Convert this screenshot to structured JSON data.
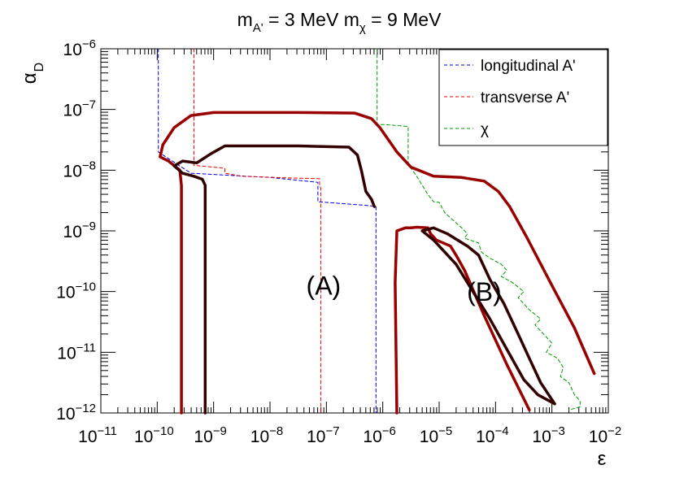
{
  "chart_data": {
    "type": "line",
    "title_parts": {
      "m1": "m",
      "m1_sub": "A'",
      "m1_val": " = 3 MeV ",
      "m2": "m",
      "m2_sub": "χ",
      "m2_val": " = 9 MeV"
    },
    "xlabel": "ε",
    "ylabel": "α",
    "ylabel_sub": "D",
    "x_scale": "log",
    "y_scale": "log",
    "xlim_exp": [
      -11,
      -2
    ],
    "ylim_exp": [
      -12,
      -6
    ],
    "x_ticks": [
      {
        "exp": -11,
        "base": "10",
        "sup": "−11"
      },
      {
        "exp": -10,
        "base": "10",
        "sup": "−10"
      },
      {
        "exp": -9,
        "base": "10",
        "sup": "−9"
      },
      {
        "exp": -8,
        "base": "10",
        "sup": "−8"
      },
      {
        "exp": -7,
        "base": "10",
        "sup": "−7"
      },
      {
        "exp": -6,
        "base": "10",
        "sup": "−6"
      },
      {
        "exp": -5,
        "base": "10",
        "sup": "−5"
      },
      {
        "exp": -4,
        "base": "10",
        "sup": "−4"
      },
      {
        "exp": -3,
        "base": "10",
        "sup": "−3"
      },
      {
        "exp": -2,
        "base": "10",
        "sup": "−2"
      }
    ],
    "y_ticks": [
      {
        "exp": -12,
        "base": "10",
        "sup": "−12"
      },
      {
        "exp": -11,
        "base": "10",
        "sup": "−11"
      },
      {
        "exp": -10,
        "base": "10",
        "sup": "−10"
      },
      {
        "exp": -9,
        "base": "10",
        "sup": "−9"
      },
      {
        "exp": -8,
        "base": "10",
        "sup": "−8"
      },
      {
        "exp": -7,
        "base": "10",
        "sup": "−7"
      },
      {
        "exp": -6,
        "base": "10",
        "sup": "−6"
      }
    ],
    "legend": {
      "position": "top-right",
      "entries": [
        {
          "label": "longitudinal A'",
          "color": "#0000dd"
        },
        {
          "label": "transverse A'",
          "color": "#ee0000"
        },
        {
          "label": "χ",
          "color": "#009900"
        }
      ]
    },
    "annotations": [
      {
        "text": "(A)",
        "log_eps": -7.05,
        "log_alpha": -10.05
      },
      {
        "text": "(B)",
        "log_eps": -4.2,
        "log_alpha": -10.15
      }
    ],
    "series": [
      {
        "name": "longitudinal A'",
        "color": "#0000dd",
        "style": "dashed",
        "points": [
          [
            -9.98,
            -6.0
          ],
          [
            -9.98,
            -7.7
          ],
          [
            -9.65,
            -7.9
          ],
          [
            -9.4,
            -8.05
          ],
          [
            -8.0,
            -8.12
          ],
          [
            -7.15,
            -8.2
          ],
          [
            -7.15,
            -8.52
          ],
          [
            -6.3,
            -8.58
          ],
          [
            -6.12,
            -8.6
          ],
          [
            -6.12,
            -12.0
          ]
        ]
      },
      {
        "name": "transverse A'",
        "color": "#ee0000",
        "style": "dashed",
        "points": [
          [
            -9.35,
            -6.0
          ],
          [
            -9.35,
            -7.92
          ],
          [
            -9.0,
            -7.95
          ],
          [
            -8.8,
            -7.97
          ],
          [
            -8.8,
            -8.05
          ],
          [
            -8.5,
            -8.1
          ],
          [
            -7.6,
            -8.13
          ],
          [
            -7.12,
            -8.14
          ],
          [
            -7.12,
            -8.25
          ],
          [
            -7.1,
            -8.3
          ],
          [
            -7.1,
            -12.0
          ]
        ]
      },
      {
        "name": "χ",
        "color": "#009900",
        "style": "dashed",
        "points": [
          [
            -6.1,
            -6.0
          ],
          [
            -6.1,
            -7.25
          ],
          [
            -5.95,
            -7.25
          ],
          [
            -5.55,
            -7.28
          ],
          [
            -5.55,
            -7.9
          ],
          [
            -5.4,
            -8.1
          ],
          [
            -5.2,
            -8.4
          ],
          [
            -5.1,
            -8.52
          ],
          [
            -5.0,
            -8.53
          ],
          [
            -4.9,
            -8.7
          ],
          [
            -4.6,
            -8.95
          ],
          [
            -4.5,
            -9.05
          ],
          [
            -4.55,
            -9.12
          ],
          [
            -4.3,
            -9.2
          ],
          [
            -4.25,
            -9.35
          ],
          [
            -4.1,
            -9.45
          ],
          [
            -3.9,
            -9.55
          ],
          [
            -3.8,
            -9.65
          ],
          [
            -3.9,
            -9.75
          ],
          [
            -3.7,
            -9.85
          ],
          [
            -3.5,
            -10.0
          ],
          [
            -3.6,
            -10.1
          ],
          [
            -3.4,
            -10.3
          ],
          [
            -3.2,
            -10.45
          ],
          [
            -3.3,
            -10.55
          ],
          [
            -3.15,
            -10.7
          ],
          [
            -3.0,
            -10.85
          ],
          [
            -3.1,
            -11.0
          ],
          [
            -2.9,
            -11.1
          ],
          [
            -2.8,
            -11.25
          ],
          [
            -2.85,
            -11.4
          ],
          [
            -2.7,
            -11.5
          ],
          [
            -2.6,
            -11.7
          ],
          [
            -2.5,
            -11.8
          ],
          [
            -2.5,
            -11.9
          ],
          [
            -2.7,
            -11.95
          ]
        ]
      },
      {
        "name": "contour-outer-A",
        "color": "#990000",
        "style": "solid",
        "points": [
          [
            -9.57,
            -12.0
          ],
          [
            -9.57,
            -8.25
          ],
          [
            -9.6,
            -8.0
          ],
          [
            -9.8,
            -7.85
          ],
          [
            -9.95,
            -7.78
          ],
          [
            -9.9,
            -7.58
          ],
          [
            -9.7,
            -7.3
          ],
          [
            -9.4,
            -7.1
          ],
          [
            -9.0,
            -7.05
          ],
          [
            -7.5,
            -7.05
          ],
          [
            -6.5,
            -7.06
          ],
          [
            -6.2,
            -7.15
          ],
          [
            -6.05,
            -7.3
          ],
          [
            -5.75,
            -7.7
          ],
          [
            -5.5,
            -7.95
          ],
          [
            -5.1,
            -8.1
          ],
          [
            -4.6,
            -8.12
          ],
          [
            -4.2,
            -8.18
          ],
          [
            -3.95,
            -8.35
          ],
          [
            -3.75,
            -8.6
          ],
          [
            -3.45,
            -9.1
          ],
          [
            -3.0,
            -9.9
          ],
          [
            -2.6,
            -10.6
          ],
          [
            -2.25,
            -11.35
          ]
        ]
      },
      {
        "name": "contour-outer-B",
        "color": "#990000",
        "style": "solid",
        "points": [
          [
            -5.75,
            -12.0
          ],
          [
            -5.78,
            -9.85
          ],
          [
            -5.75,
            -9.0
          ],
          [
            -5.6,
            -8.95
          ],
          [
            -5.5,
            -8.95
          ],
          [
            -5.4,
            -8.94
          ],
          [
            -5.2,
            -8.95
          ],
          [
            -5.15,
            -9.05
          ],
          [
            -5.05,
            -9.15
          ],
          [
            -4.8,
            -9.25
          ],
          [
            -4.7,
            -9.4
          ],
          [
            -4.55,
            -9.65
          ],
          [
            -4.2,
            -10.4
          ],
          [
            -3.8,
            -11.2
          ],
          [
            -3.4,
            -11.95
          ]
        ]
      },
      {
        "name": "contour-inner-A",
        "color": "#330000",
        "style": "solid",
        "points": [
          [
            -9.15,
            -12.0
          ],
          [
            -9.15,
            -8.25
          ],
          [
            -9.2,
            -8.15
          ],
          [
            -9.35,
            -8.1
          ],
          [
            -9.55,
            -8.05
          ],
          [
            -9.7,
            -7.93
          ],
          [
            -9.55,
            -7.85
          ],
          [
            -9.3,
            -7.88
          ],
          [
            -9.05,
            -7.73
          ],
          [
            -8.8,
            -7.6
          ],
          [
            -7.5,
            -7.6
          ],
          [
            -6.6,
            -7.62
          ],
          [
            -6.45,
            -7.75
          ],
          [
            -6.38,
            -8.0
          ],
          [
            -6.3,
            -8.35
          ],
          [
            -6.2,
            -8.48
          ],
          [
            -6.15,
            -8.6
          ]
        ]
      },
      {
        "name": "contour-inner-B",
        "color": "#330000",
        "style": "solid",
        "points": [
          [
            -5.3,
            -9.0
          ],
          [
            -5.1,
            -8.95
          ],
          [
            -4.85,
            -9.05
          ],
          [
            -4.5,
            -9.25
          ],
          [
            -4.3,
            -9.4
          ],
          [
            -4.1,
            -9.8
          ],
          [
            -3.85,
            -10.2
          ],
          [
            -3.6,
            -10.7
          ],
          [
            -3.4,
            -11.1
          ],
          [
            -3.2,
            -11.5
          ],
          [
            -2.95,
            -11.85
          ],
          [
            -3.25,
            -11.7
          ],
          [
            -3.5,
            -11.45
          ],
          [
            -3.8,
            -10.95
          ],
          [
            -4.1,
            -10.45
          ],
          [
            -4.4,
            -10.0
          ],
          [
            -4.7,
            -9.55
          ],
          [
            -4.95,
            -9.3
          ],
          [
            -5.1,
            -9.15
          ],
          [
            -5.3,
            -9.0
          ]
        ]
      }
    ]
  }
}
